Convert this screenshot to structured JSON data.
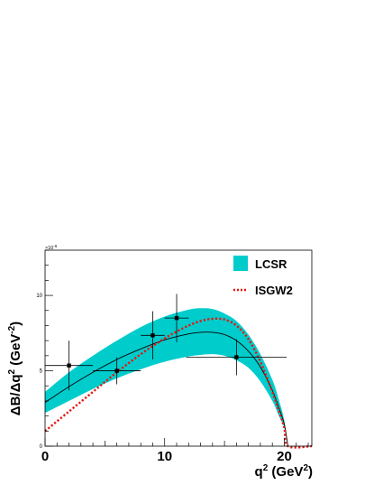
{
  "chart_data": {
    "type": "line",
    "title": "",
    "xlabel": "q",
    "xlabel_sup": "2",
    "xlabel_unit_pre": " (GeV",
    "xlabel_unit_sup": "2",
    "xlabel_unit_post": ")",
    "ylabel": "ΔB/Δq",
    "ylabel_sup": "2",
    "ylabel_unit_pre": " (GeV",
    "ylabel_unit_sup": "-2",
    "ylabel_unit_post": ")",
    "y_exponent": "×10",
    "y_exponent_sup": "-6",
    "xlim": [
      0,
      22.3
    ],
    "ylim": [
      0,
      13
    ],
    "x_ticks": [
      0,
      10,
      20
    ],
    "x_tick_labels": [
      "0",
      "10",
      "20"
    ],
    "y_ticks": [
      0,
      5,
      10
    ],
    "y_tick_labels": [
      "0",
      "5",
      "10"
    ],
    "grid": false,
    "legend": {
      "placement": "top-right",
      "entries": [
        {
          "label": "LCSR",
          "style": "band",
          "color": "#00cccc"
        },
        {
          "label": "ISGW2",
          "style": "dotted-line",
          "color": "#e8140f"
        }
      ]
    },
    "series": [
      {
        "name": "LCSR",
        "kind": "band-with-central-line",
        "color": "#00cccc",
        "line_color": "#000000",
        "x": [
          0,
          2,
          4,
          6,
          8,
          10,
          12,
          13,
          14,
          15,
          16,
          17,
          18,
          19,
          19.5,
          20.0,
          20.3
        ],
        "lower": [
          2.2,
          3.0,
          3.8,
          4.5,
          5.1,
          5.6,
          5.95,
          6.05,
          6.1,
          6.0,
          5.7,
          5.2,
          4.3,
          3.0,
          2.1,
          1.2,
          0.0
        ],
        "upper": [
          3.6,
          4.9,
          6.0,
          7.0,
          7.9,
          8.6,
          9.05,
          9.15,
          9.1,
          8.8,
          8.3,
          7.4,
          6.1,
          4.4,
          3.2,
          1.7,
          0.0
        ],
        "central": [
          2.9,
          3.95,
          4.9,
          5.75,
          6.45,
          7.05,
          7.45,
          7.55,
          7.55,
          7.4,
          7.0,
          6.3,
          5.25,
          3.7,
          2.65,
          1.45,
          0.0
        ]
      },
      {
        "name": "ISGW2",
        "kind": "dotted-line",
        "color": "#e8140f",
        "x": [
          0,
          2,
          4,
          6,
          8,
          10,
          11,
          12,
          13,
          14,
          15,
          16,
          17,
          18,
          19,
          19.5,
          20.0,
          20.3,
          22.3
        ],
        "y": [
          1.0,
          2.3,
          3.6,
          4.9,
          6.1,
          7.15,
          7.6,
          8.0,
          8.3,
          8.45,
          8.4,
          8.0,
          7.1,
          5.6,
          3.6,
          2.45,
          1.2,
          0.0,
          0.0
        ]
      },
      {
        "name": "data",
        "kind": "points-with-errors",
        "color": "#000000",
        "x": [
          2.0,
          6.0,
          9.0,
          11.0,
          16.0
        ],
        "y": [
          5.35,
          5.0,
          7.35,
          8.5,
          5.9
        ],
        "xerr": [
          2.0,
          2.0,
          1.0,
          1.0,
          4.2
        ],
        "yerr": [
          1.65,
          0.9,
          1.6,
          1.6,
          1.2
        ]
      }
    ]
  }
}
